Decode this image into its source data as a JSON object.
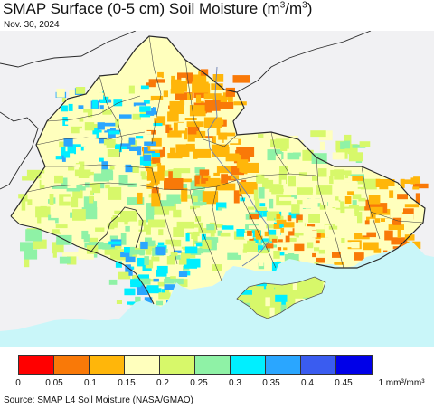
{
  "title": {
    "prefix": "SMAP Surface (0-5 cm) Soil Moisture (m",
    "sup1": "3",
    "mid": "/m",
    "sup2": "3",
    "suffix": ")"
  },
  "date": "Nov. 30, 2024",
  "colors": {
    "sea": "#c9f6f9",
    "outside": "#f1f1f3",
    "border": "#2a2a2a"
  },
  "legend": {
    "swatches": [
      "#ff0000",
      "#f97908",
      "#ffb60a",
      "#ffffbd",
      "#d7f86a",
      "#8ff2a6",
      "#00efff",
      "#2aa6ff",
      "#3a5cf0",
      "#0000e8"
    ],
    "ticks": [
      "0",
      "0.05",
      "0.1",
      "0.15",
      "0.2",
      "0.25",
      "0.3",
      "0.35",
      "0.4",
      "0.45",
      "1 mm³/mm³"
    ]
  },
  "source": "Source: SMAP L4 Soil Moisture (NASA/GMAO)"
}
